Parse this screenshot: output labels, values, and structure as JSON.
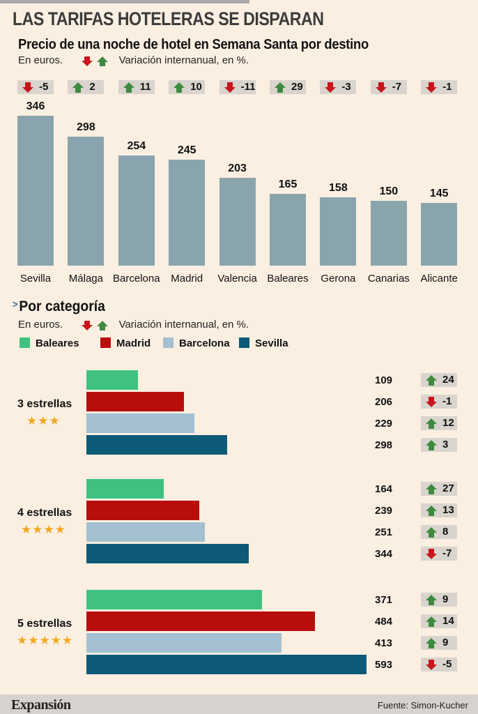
{
  "header": {
    "title": "LAS TARIFAS HOTELERAS SE DISPARAN",
    "subtitle": "Precio de una noche de hotel en Semana Santa por destino",
    "unit_label": "En euros.",
    "variation_label": "Variación internanual, en %."
  },
  "colors": {
    "up_arrow": "#3e8a3e",
    "down_arrow": "#c8141b",
    "bar": "#8aa4ae",
    "badge_bg": "#d9d4cd",
    "star": "#f0a81e"
  },
  "section2": {
    "title": "Por categoría",
    "unit_label": "En euros.",
    "variation_label": "Variación internanual, en %."
  },
  "chart_data": [
    {
      "type": "bar",
      "title": "Precio de una noche de hotel en Semana Santa por destino",
      "categories": [
        "Sevilla",
        "Málaga",
        "Barcelona",
        "Madrid",
        "Valencia",
        "Baleares",
        "Gerona",
        "Canarias",
        "Alicante"
      ],
      "values": [
        346,
        298,
        254,
        245,
        203,
        165,
        158,
        150,
        145
      ],
      "variation": [
        -5,
        2,
        11,
        10,
        -11,
        29,
        -3,
        -7,
        -1
      ],
      "ylim": [
        0,
        346
      ]
    },
    {
      "type": "bar",
      "title": "Por categoría",
      "orientation": "horizontal",
      "categories": [
        "3 estrellas",
        "4 estrellas",
        "5 estrellas"
      ],
      "stars": [
        "★★★",
        "★★★★",
        "★★★★★"
      ],
      "series": [
        {
          "name": "Baleares",
          "color": "#3fc27f",
          "values": [
            109,
            164,
            371
          ],
          "variation": [
            24,
            27,
            9
          ]
        },
        {
          "name": "Madrid",
          "color": "#b80d0d",
          "values": [
            206,
            239,
            484
          ],
          "variation": [
            -1,
            13,
            14
          ]
        },
        {
          "name": "Barcelona",
          "color": "#a4c0d0",
          "values": [
            229,
            251,
            413
          ],
          "variation": [
            12,
            8,
            9
          ]
        },
        {
          "name": "Sevilla",
          "color": "#0c5a78",
          "values": [
            298,
            344,
            593
          ],
          "variation": [
            3,
            -7,
            -5
          ]
        }
      ]
    }
  ],
  "footer": {
    "logo": "Expansión",
    "source": "Fuente: Simon-Kucher"
  }
}
